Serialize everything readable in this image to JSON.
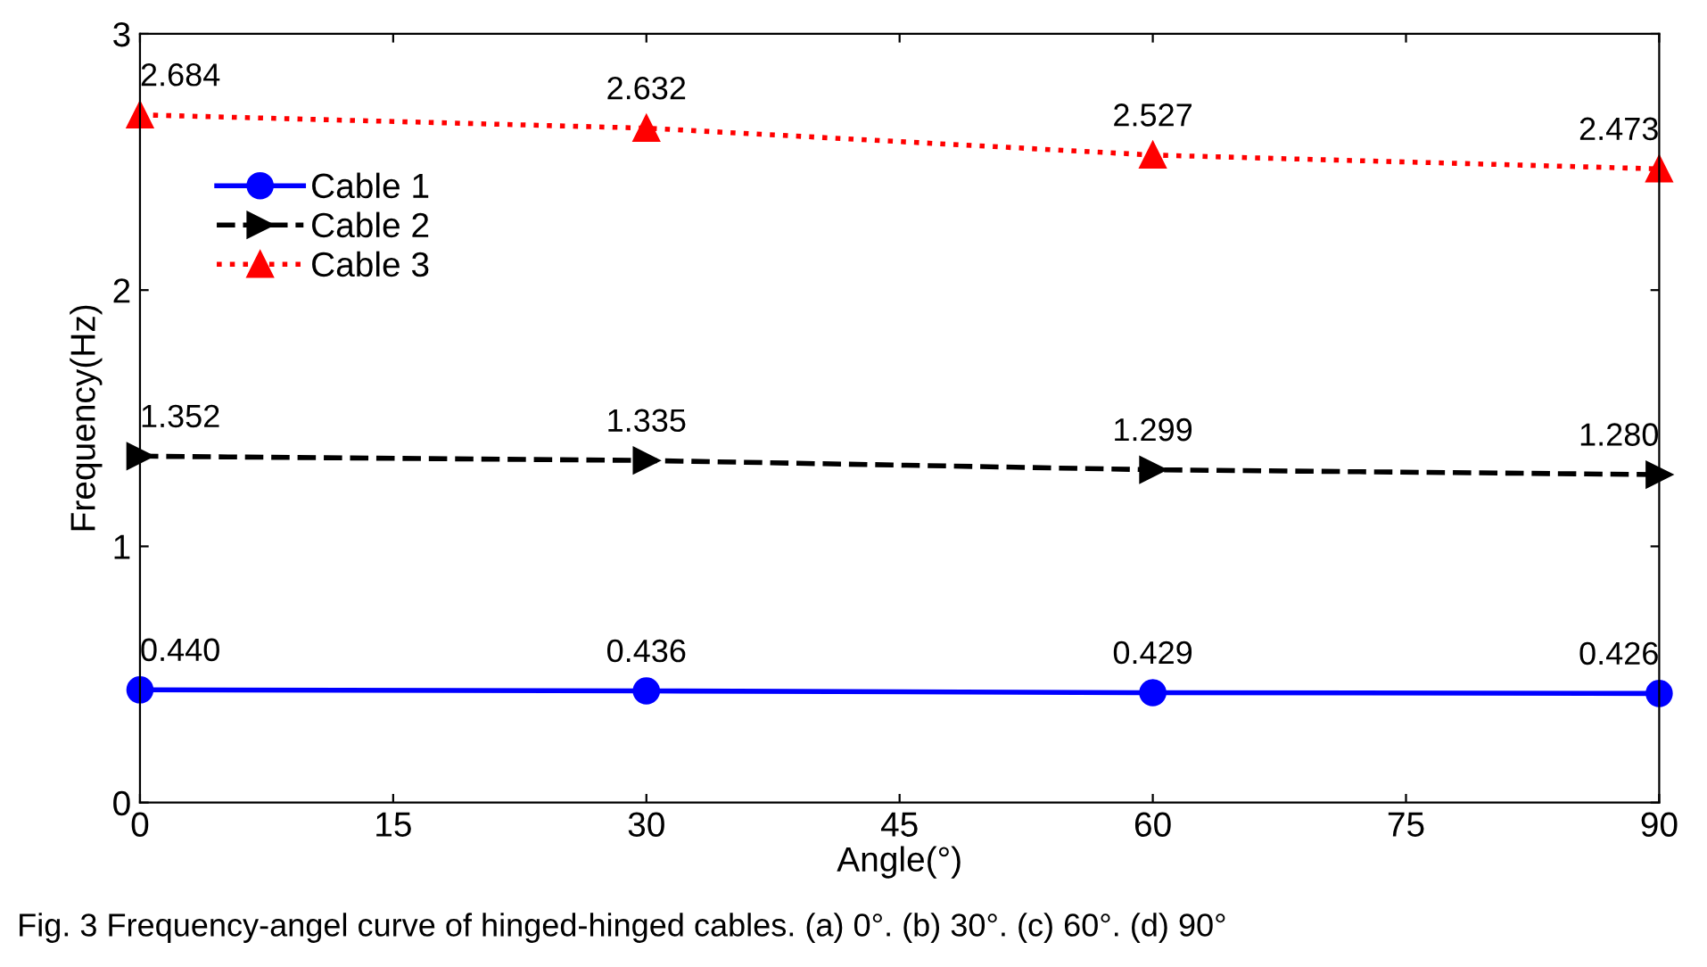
{
  "chart_data": {
    "type": "line",
    "xlabel": "Angle(°)",
    "ylabel": "Frequency(Hz)",
    "x": [
      0,
      30,
      60,
      90
    ],
    "series": [
      {
        "name": "Cable 1",
        "color": "#0000ff",
        "values": [
          0.44,
          0.436,
          0.429,
          0.426
        ],
        "value_labels": [
          "0.440",
          "0.436",
          "0.429",
          "0.426"
        ],
        "marker": "circle",
        "line_style": "solid"
      },
      {
        "name": "Cable 2",
        "color": "#000000",
        "values": [
          1.352,
          1.335,
          1.299,
          1.28
        ],
        "value_labels": [
          "1.352",
          "1.335",
          "1.299",
          "1.280"
        ],
        "marker": "triangle-right",
        "line_style": "dashed"
      },
      {
        "name": "Cable 3",
        "color": "#ff0000",
        "values": [
          2.684,
          2.632,
          2.527,
          2.473
        ],
        "value_labels": [
          "2.684",
          "2.632",
          "2.527",
          "2.473"
        ],
        "marker": "triangle",
        "line_style": "dotted"
      }
    ],
    "xlim": [
      0,
      90
    ],
    "xticks": [
      0,
      15,
      30,
      45,
      60,
      75,
      90
    ],
    "ylim": [
      0,
      3
    ],
    "yticks": [
      0,
      1,
      2,
      3
    ],
    "grid": false,
    "legend": "top left",
    "annotations": [
      "Fig. 3 Frequency-angel curve of hinged-hinged cables. (a) 0°. (b) 30°. (c) 60°. (d) 90°"
    ]
  }
}
